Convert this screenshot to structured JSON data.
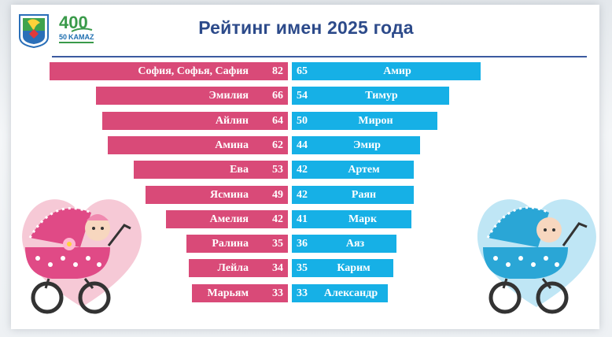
{
  "title": "Рейтинг имен 2025 года",
  "logo": {
    "kamaz_text": "KAMAZ",
    "kamaz_number": "50",
    "anniversary_number": "400"
  },
  "colors": {
    "girls": "#d94a78",
    "boys": "#16b0e6",
    "title": "#2c4a8a"
  },
  "chart_data": {
    "type": "bar",
    "title": "Рейтинг имен 2025 года",
    "layout": "diverging",
    "series": [
      {
        "categories": [
          "София, Софья, Сафия",
          "Эмилия",
          "Айлин",
          "Амина",
          "Ева",
          "Ясмина",
          "Амелия",
          "Ралина",
          "Лейла",
          "Марьям"
        ],
        "values": [
          82,
          66,
          64,
          62,
          53,
          49,
          42,
          35,
          34,
          33
        ]
      },
      {
        "categories": [
          "Амир",
          "Тимур",
          "Мирон",
          "Эмир",
          "Артем",
          "Раян",
          "Марк",
          "Аяз",
          "Карим",
          "Александр"
        ],
        "values": [
          65,
          54,
          50,
          44,
          42,
          42,
          41,
          36,
          35,
          33
        ]
      }
    ]
  }
}
